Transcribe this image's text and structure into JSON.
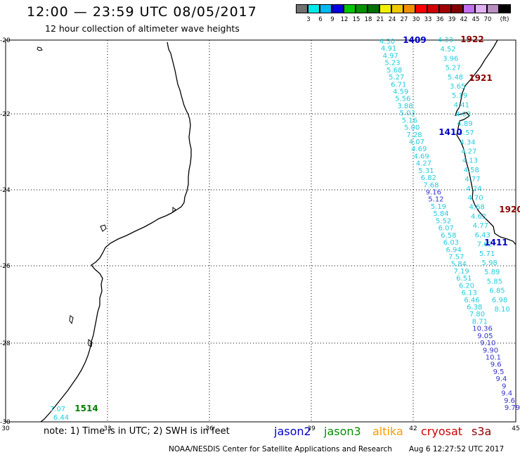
{
  "header": {
    "title": "12:00 — 23:59 UTC 08/05/2017",
    "subtitle": "12 hour collection of altimeter wave heights"
  },
  "colorbar": {
    "colors": [
      "#707070",
      "#00e8e8",
      "#00b8f0",
      "#0000e0",
      "#00c800",
      "#009000",
      "#007000",
      "#f0f000",
      "#f0c800",
      "#f09000",
      "#ff0000",
      "#d00000",
      "#a00000",
      "#800000",
      "#c070f0",
      "#e0b0f0",
      "#b890c0",
      "#000000"
    ],
    "labels": [
      "3",
      "6",
      "9",
      "12",
      "15",
      "18",
      "21",
      "24",
      "27",
      "30",
      "33",
      "36",
      "39",
      "42",
      "45",
      "70"
    ],
    "unit": "(ft)"
  },
  "map": {
    "lat_labels": [
      "-20",
      "-22",
      "-24",
      "-26",
      "-28",
      "-30"
    ],
    "lon_labels": [
      "30",
      "33",
      "36",
      "39",
      "42",
      "45"
    ],
    "track_labels": [
      {
        "text": "1409",
        "color": "#0000c8"
      },
      {
        "text": "1922",
        "color": "#8b0000"
      },
      {
        "text": "1921",
        "color": "#8b0000"
      },
      {
        "text": "1410",
        "color": "#0000c8"
      },
      {
        "text": "1920",
        "color": "#8b0000"
      },
      {
        "text": "1411",
        "color": "#0000c8"
      },
      {
        "text": "1514",
        "color": "#008000"
      }
    ],
    "track_a_values": [
      "4.30",
      "4.91",
      "4.97",
      "5.23",
      "5.68",
      "5.27",
      "6.71",
      "4.59",
      "5.56",
      "3.88",
      "5.03",
      "5.16",
      "5.00",
      "7.28",
      "4.07",
      "4.69",
      "4.69",
      "4.27",
      "5.31",
      "6.82",
      "7.68",
      "9.16",
      "5.12",
      "5.19",
      "5.84",
      "5.52",
      "6.07",
      "6.58",
      "6.03",
      "6.94",
      "7.57",
      "5.84",
      "7.19",
      "6.51",
      "6.20",
      "6.13",
      "6.46",
      "6.38",
      "7.80",
      "8.71",
      "10.36",
      "9.05",
      "9.10",
      "9.90",
      "10.1",
      "9.6",
      "9.5",
      "9.4",
      "9",
      "9.4",
      "9.6",
      "9.79"
    ],
    "track_b_values": [
      "4.33",
      "4.52",
      "3.96",
      "5.27",
      "5.48",
      "3.65",
      "5.19",
      "4.41",
      "4.03",
      "4.89",
      "4.57",
      "4.34",
      "4.27",
      "4.13",
      "4.58",
      "4.77",
      "4.24",
      "4.70",
      "4.68",
      "4.62",
      "4.77",
      "6.43",
      "7.62",
      "5.71",
      "5.98",
      "5.89",
      "5.85",
      "6.85",
      "6.98",
      "8.10"
    ],
    "bottom_left_values": [
      "7.07",
      "6.44"
    ]
  },
  "footer": {
    "note": "note:  1) Time is in UTC;  2) SWH is in feet",
    "satellites": [
      {
        "name": "jason2",
        "color": "#0000c8"
      },
      {
        "name": "jason3",
        "color": "#009000"
      },
      {
        "name": "altika",
        "color": "#ff9900"
      },
      {
        "name": "cryosat",
        "color": "#d00000"
      },
      {
        "name": "s3a",
        "color": "#8b0000"
      }
    ],
    "credit": "NOAA/NESDIS Center for Satellite Applications and Research",
    "timestamp": "Aug  6 12:27:52 UTC 2017"
  }
}
